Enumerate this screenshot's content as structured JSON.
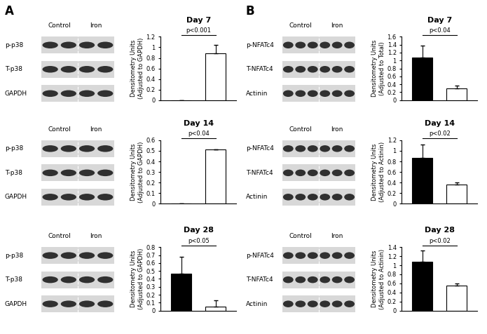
{
  "panel_labels": [
    "A",
    "B"
  ],
  "blots": [
    {
      "groups": [
        "Control",
        "Iron"
      ],
      "rows": [
        "p-p38",
        "T-p38",
        "GAPDH"
      ]
    },
    {
      "groups": [
        "Control",
        "Iron"
      ],
      "rows": [
        "p-p38",
        "T-p38",
        "GAPDH"
      ]
    },
    {
      "groups": [
        "Control",
        "Iron"
      ],
      "rows": [
        "p-p38",
        "T-p38",
        "GAPDH"
      ]
    },
    {
      "groups": [
        "Control",
        "Iron"
      ],
      "rows": [
        "p-NFATc4",
        "T-NFATc4",
        "Actinin"
      ]
    },
    {
      "groups": [
        "Control",
        "Iron"
      ],
      "rows": [
        "p-NFATc4",
        "T-NFATc4",
        "Actinin"
      ]
    },
    {
      "groups": [
        "Control",
        "Iron"
      ],
      "rows": [
        "p-NFATc4",
        "T-NFATc4",
        "Actinin"
      ]
    }
  ],
  "chart_data": [
    {
      "type": "bar",
      "title": "Day 7",
      "ylabel": "Densitometry Units\n(Adjusted to GAPDH)",
      "categories": [
        null,
        null
      ],
      "values": [
        0,
        0.88
      ],
      "errors": [
        0,
        0.17
      ],
      "colors": [
        "#000000",
        "#ffffff"
      ],
      "ylim": [
        0,
        1.2
      ],
      "yticks": [
        0,
        0.2,
        0.4,
        0.6,
        0.8,
        1,
        1.2
      ],
      "annotation": "p<0.001",
      "tick_labels": "y"
    },
    {
      "type": "bar",
      "title": "Day 14",
      "ylabel": "Densitometry Units\n(Adjusted to GAPDH)",
      "categories": [
        null,
        null
      ],
      "values": [
        0.005,
        0.51
      ],
      "errors": [
        0,
        0.005
      ],
      "colors": [
        "#000000",
        "#ffffff"
      ],
      "ylim": [
        0,
        0.6
      ],
      "yticks": [
        0,
        0.1,
        0.2,
        0.3,
        0.4,
        0.5,
        0.6
      ],
      "annotation": "p<0.04",
      "tick_labels": "y"
    },
    {
      "type": "bar",
      "title": "Day 28",
      "ylabel": "Densitometry Units\n(Adjusted to GAPDH)",
      "categories": [
        null,
        null
      ],
      "values": [
        0.47,
        0.05
      ],
      "errors": [
        0.21,
        0.08
      ],
      "colors": [
        "#000000",
        "#ffffff"
      ],
      "ylim": [
        0,
        0.8
      ],
      "yticks": [
        0,
        0.1,
        0.2,
        0.3,
        0.4,
        0.5,
        0.6,
        0.7,
        0.8
      ],
      "annotation": "p<0.05",
      "tick_labels": "y"
    },
    {
      "type": "bar",
      "title": "Day 7",
      "ylabel": "Densitometry Units\n(Adjusted to Total)",
      "categories": [
        null,
        null
      ],
      "values": [
        1.07,
        0.3
      ],
      "errors": [
        0.3,
        0.07
      ],
      "colors": [
        "#000000",
        "#ffffff"
      ],
      "ylim": [
        0,
        1.6
      ],
      "yticks": [
        0,
        0.2,
        0.4,
        0.6,
        0.8,
        1,
        1.2,
        1.4,
        1.6
      ],
      "annotation": "p<0.04",
      "tick_labels": "y"
    },
    {
      "type": "bar",
      "title": "Day 14",
      "ylabel": "Densitometry Units\n(Adjusted to Actinin)",
      "categories": [
        null,
        null
      ],
      "values": [
        0.87,
        0.36
      ],
      "errors": [
        0.25,
        0.04
      ],
      "colors": [
        "#000000",
        "#ffffff"
      ],
      "ylim": [
        0,
        1.2
      ],
      "yticks": [
        0,
        0.2,
        0.4,
        0.6,
        0.8,
        1,
        1.2
      ],
      "annotation": "p<0.02",
      "tick_labels": "y"
    },
    {
      "type": "bar",
      "title": "Day 28",
      "ylabel": "Densitometry Units\n(Adjusted to Actinin)",
      "categories": [
        null,
        null
      ],
      "values": [
        1.08,
        0.55
      ],
      "errors": [
        0.24,
        0.05
      ],
      "colors": [
        "#000000",
        "#ffffff"
      ],
      "ylim": [
        0,
        1.4
      ],
      "yticks": [
        0,
        0.2,
        0.4,
        0.6,
        0.8,
        1,
        1.2,
        1.4
      ],
      "annotation": "p<0.02",
      "tick_labels": "y"
    }
  ]
}
